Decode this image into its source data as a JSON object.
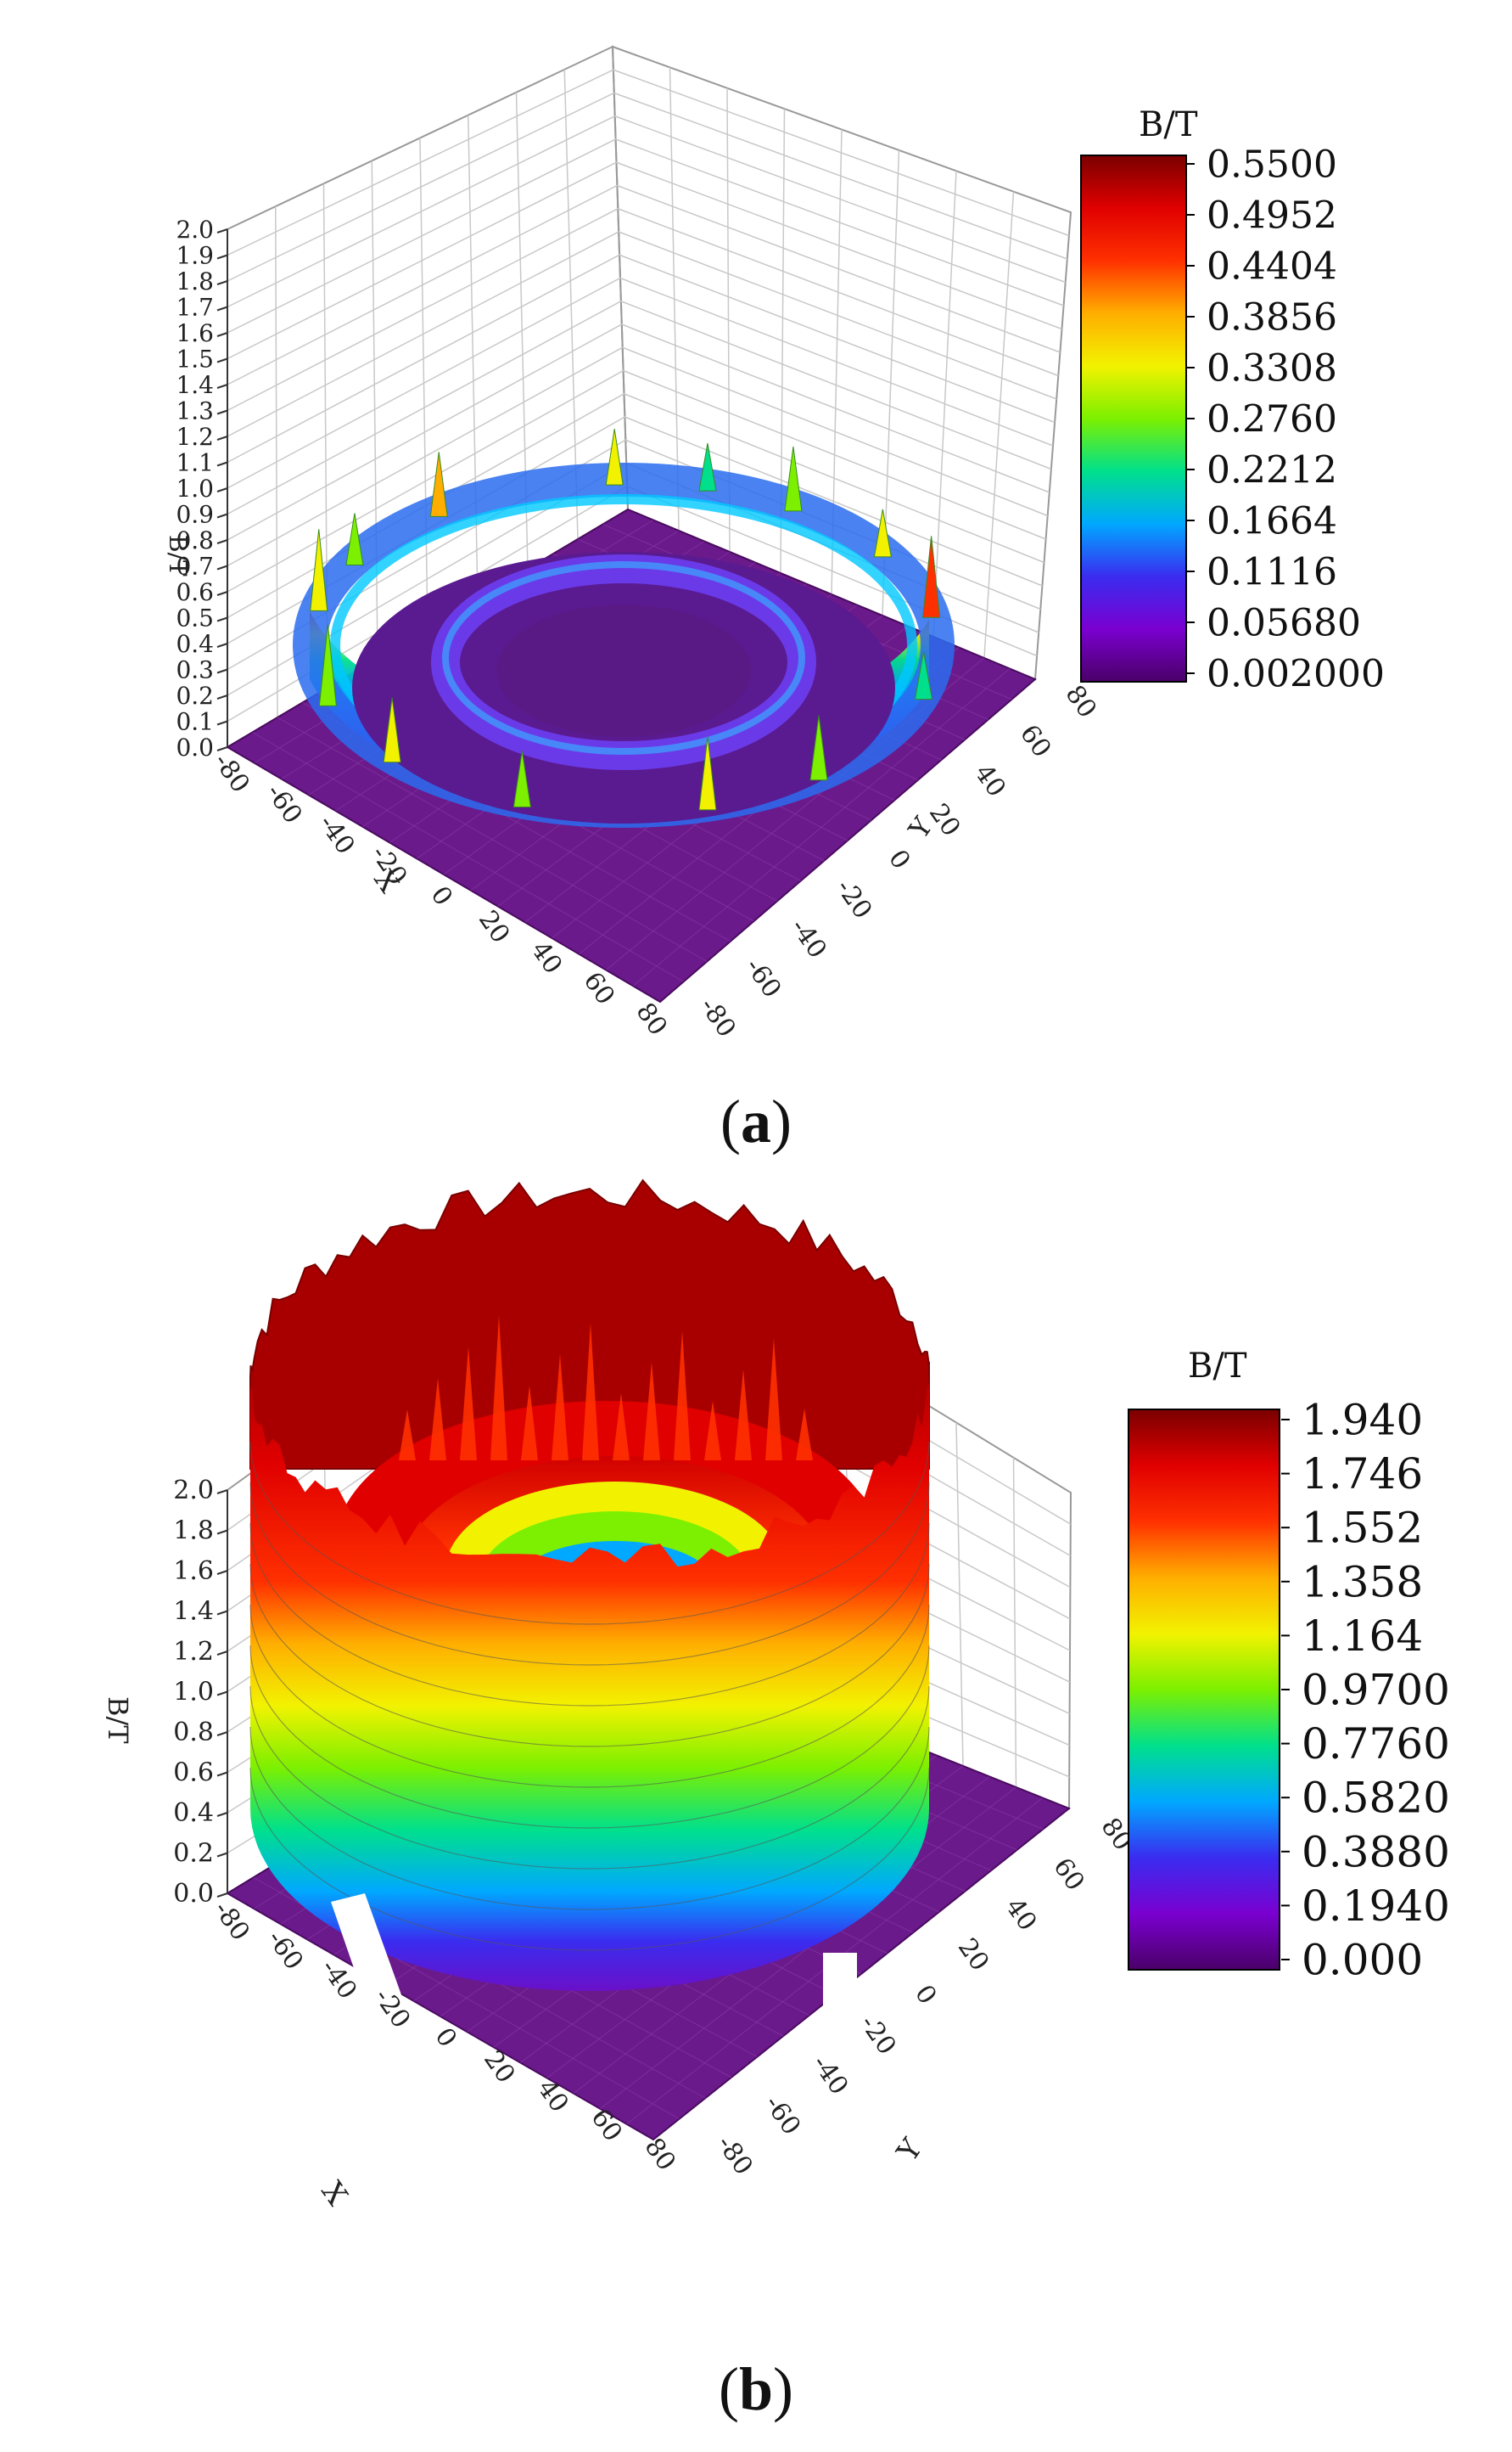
{
  "chart_data": [
    {
      "type": "surface3d",
      "caption": "a",
      "colorbar": {
        "title": "B/T",
        "ticks": [
          "0.5500",
          "0.4952",
          "0.4404",
          "0.3856",
          "0.3308",
          "0.2760",
          "0.2212",
          "0.1664",
          "0.1116",
          "0.05680",
          "0.002000"
        ],
        "range": [
          0.002,
          0.55
        ]
      },
      "zlabel": "B/T",
      "zlim": [
        0,
        2.0
      ],
      "zticks": [
        "2.0",
        "1.9",
        "1.8",
        "1.7",
        "1.6",
        "1.5",
        "1.4",
        "1.3",
        "1.2",
        "1.1",
        "1.0",
        "0.9",
        "0.8",
        "0.7",
        "0.6",
        "0.5",
        "0.4",
        "0.3",
        "0.2",
        "0.1",
        "0.0"
      ],
      "xlabel": "X",
      "xticks": [
        "-80",
        "-60",
        "-40",
        "-20",
        "0",
        "20",
        "40",
        "60",
        "80"
      ],
      "ylabel": "Y",
      "yticks": [
        "80",
        "60",
        "40",
        "20",
        "0",
        "-20",
        "-40",
        "-60",
        "-80"
      ],
      "surface": {
        "inner_radius": 30,
        "outer_ring_radius": 58,
        "outer_ring_peak_B": 0.55,
        "inner_ring_peak_B": 0.15,
        "base_B": 0.002
      }
    },
    {
      "type": "surface3d",
      "caption": "b",
      "colorbar": {
        "title": "B/T",
        "ticks": [
          "1.940",
          "1.746",
          "1.552",
          "1.358",
          "1.164",
          "0.9700",
          "0.7760",
          "0.5820",
          "0.3880",
          "0.1940",
          "0.000"
        ],
        "range": [
          0,
          1.94
        ]
      },
      "zlabel": "B/T",
      "zlim": [
        0,
        2.0
      ],
      "zticks": [
        "2.0",
        "1.8",
        "1.6",
        "1.4",
        "1.2",
        "1.0",
        "0.8",
        "0.6",
        "0.4",
        "0.2",
        "0.0"
      ],
      "xlabel": "X",
      "xticks": [
        "-80",
        "-60",
        "-40",
        "-20",
        "0",
        "20",
        "40",
        "60",
        "80"
      ],
      "ylabel": "Y",
      "yticks": [
        "80",
        "60",
        "40",
        "20",
        "0",
        "-20",
        "-40",
        "-60",
        "-80"
      ],
      "surface": {
        "inner_radius": 30,
        "outer_radius": 60,
        "peak_B": 1.94,
        "base_B": 0
      }
    }
  ],
  "colormap": [
    "#4a0068",
    "#7a00d0",
    "#3a2cf0",
    "#00a8ff",
    "#00e08c",
    "#7cf000",
    "#f2f200",
    "#ffae00",
    "#ff3000",
    "#e00000",
    "#7a0000"
  ]
}
